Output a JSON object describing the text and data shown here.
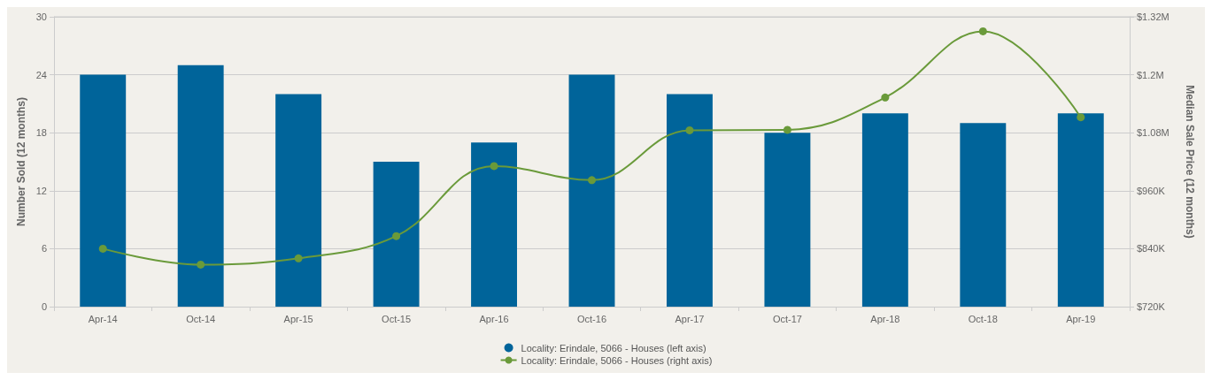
{
  "chart_data": {
    "type": "bar",
    "categories": [
      "Apr-14",
      "Oct-14",
      "Apr-15",
      "Oct-15",
      "Apr-16",
      "Oct-16",
      "Apr-17",
      "Oct-17",
      "Apr-18",
      "Oct-18",
      "Apr-19"
    ],
    "series": [
      {
        "name": "Locality: Erindale, 5066 - Houses (left axis)",
        "color": "#00649a",
        "values": [
          24,
          25,
          22,
          15,
          17,
          24,
          22,
          18,
          20,
          19,
          20
        ]
      },
      {
        "name": "Locality: Erindale, 5066 - Houses (right axis)",
        "type": "line",
        "axis": "y2",
        "color": "#6a9a3a",
        "marker": "circle",
        "values": [
          840000,
          807000,
          820000,
          866000,
          1011000,
          982000,
          1085000,
          1086000,
          1153000,
          1290000,
          1112000
        ]
      }
    ],
    "ylabel": "Number Sold (12 months)",
    "y2label": "Median Sale Price (12 months)",
    "ylim": [
      0,
      30
    ],
    "yticks": [
      0,
      6,
      12,
      18,
      24,
      30
    ],
    "y2lim": [
      720000,
      1320000
    ],
    "y2ticks": [
      {
        "value": 720000,
        "label": "$720K"
      },
      {
        "value": 840000,
        "label": "$840K"
      },
      {
        "value": 960000,
        "label": "$960K"
      },
      {
        "value": 1080000,
        "label": "$1.08M"
      },
      {
        "value": 1200000,
        "label": "$1.2M"
      },
      {
        "value": 1320000,
        "label": "$1.32M"
      }
    ],
    "grid": "y",
    "legend": "bottom"
  }
}
